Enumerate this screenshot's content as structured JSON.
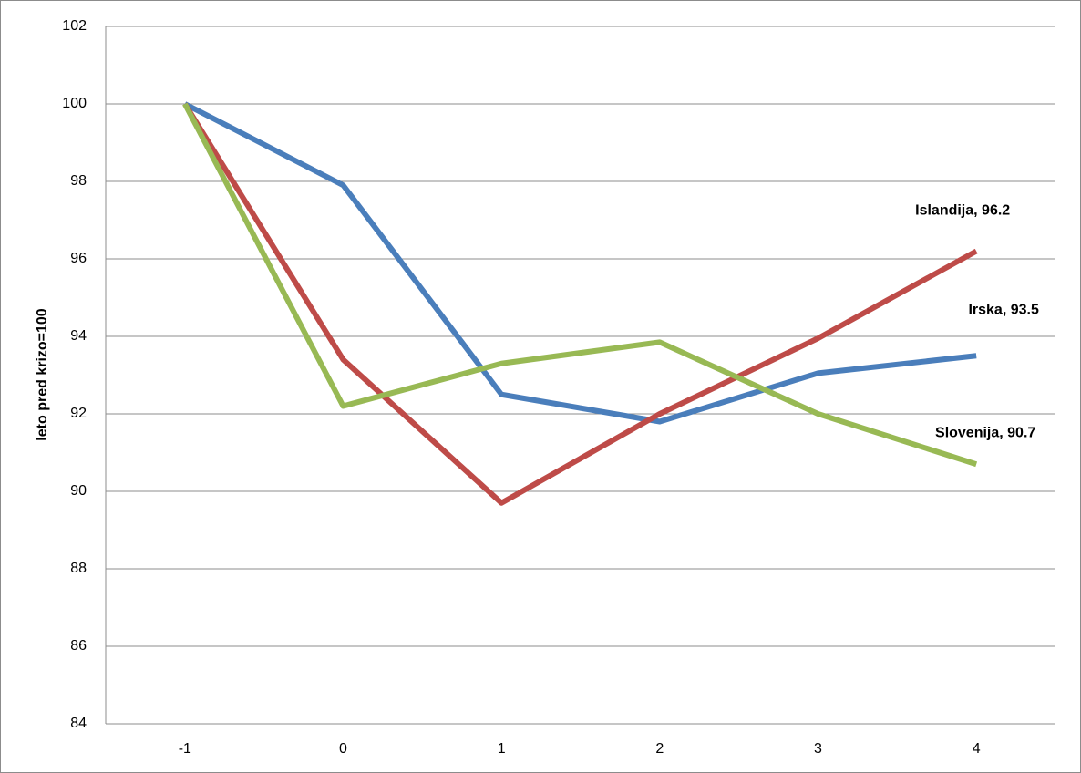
{
  "chart_data": {
    "type": "line",
    "y_label": "leto pred krizo=100",
    "categories": [
      "-1",
      "0",
      "1",
      "2",
      "3",
      "4"
    ],
    "series": [
      {
        "color": "#4a7ebb",
        "values": [
          100,
          97.9,
          92.5,
          91.8,
          93.05,
          93.5
        ],
        "label": "Irska, 93.5"
      },
      {
        "color": "#be4b48",
        "values": [
          100,
          93.4,
          89.7,
          92.0,
          93.95,
          96.2
        ],
        "label": "Islandija, 96.2"
      },
      {
        "color": "#98b954",
        "values": [
          100,
          92.2,
          93.3,
          93.85,
          92.0,
          90.7
        ],
        "label": "Slovenija, 90.7"
      }
    ],
    "ylim": [
      84,
      102
    ],
    "yticks": [
      84,
      86,
      88,
      90,
      92,
      94,
      96,
      98,
      100,
      102
    ],
    "grid": true
  }
}
